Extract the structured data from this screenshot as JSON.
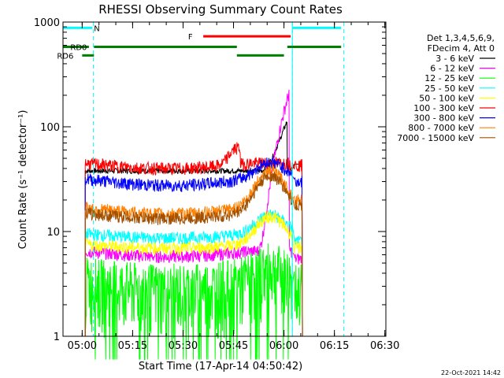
{
  "chart_data": {
    "type": "line",
    "title": "RHESSI Observing Summary Count Rates",
    "xlabel": "Start Time (17-Apr-14 04:50:42)",
    "ylabel": "Count Rate (s⁻¹ detector⁻¹)",
    "x_ticks": [
      "05:00",
      "05:15",
      "05:30",
      "05:45",
      "06:00",
      "06:15",
      "06:30"
    ],
    "y_ticks": [
      "1",
      "10",
      "100",
      "1000"
    ],
    "x_range_minutes": [
      4.3,
      100.3
    ],
    "ylim": [
      1,
      1000
    ],
    "y_scale": "log",
    "legend_header": [
      "Det 1,3,4,5,6,9,",
      "FDecim 4, Att 0"
    ],
    "legend_position": "right",
    "footer_date": "22-Oct-2021 14:42",
    "series": [
      {
        "name": "3 - 6 keV",
        "color": "#000000",
        "kind": "base",
        "base": 38,
        "start": 39.5,
        "rise": 85,
        "peak": 115,
        "end": 44,
        "rej": 44
      },
      {
        "name": "6 - 12 keV",
        "color": "#ff00ff",
        "kind": "flare",
        "base": 6.5,
        "bump": 3,
        "peak": 210,
        "rej": 5.5
      },
      {
        "name": "12 - 25 keV",
        "color": "#00ff00",
        "kind": "noisy",
        "base": 2.8,
        "bump": 1.2,
        "peak": 4,
        "rej": 3
      },
      {
        "name": "25 - 50 keV",
        "color": "#00ffff",
        "kind": "bump",
        "base": 9.5,
        "mid": 8.0,
        "bump": 13,
        "rej": 8
      },
      {
        "name": "50 - 100 keV",
        "color": "#ffff00",
        "kind": "bump",
        "base": 7.5,
        "mid": 6.5,
        "bump": 13,
        "rej": 7
      },
      {
        "name": "100 - 300 keV",
        "color": "#ff0000",
        "kind": "rate",
        "base": 45,
        "mid": 36,
        "bump": 55,
        "rej": 43
      },
      {
        "name": "300 - 800 keV",
        "color": "#0000ff",
        "kind": "bump",
        "base": 32,
        "mid": 24,
        "bump": 38,
        "rej": 30
      },
      {
        "name": "800 - 7000 keV",
        "color": "#ff8000",
        "kind": "bump",
        "base": 17,
        "mid": 13,
        "bump": 34,
        "rej": 20
      },
      {
        "name": "7000 - 15000 keV",
        "color": "#a05000",
        "kind": "bump",
        "base": 15,
        "mid": 12,
        "bump": 31,
        "rej": 18
      }
    ],
    "flags": [
      {
        "label": "N",
        "color": "#00ffff",
        "y": 880,
        "segments": [
          [
            4.3,
            13.0
          ],
          [
            72.5,
            87.0
          ]
        ],
        "label_at": 13.5
      },
      {
        "label": "F",
        "color": "#ff0000",
        "y": 730,
        "segments": [
          [
            46.0,
            72.0
          ]
        ],
        "label_at": 41.5
      },
      {
        "label": "RD0",
        "color": "#008000",
        "y": 580,
        "segments": [
          [
            4.3,
            12.0
          ],
          [
            13.5,
            56.0
          ],
          [
            71.0,
            87.0
          ]
        ],
        "label_at": 6.5
      },
      {
        "label": "RD6",
        "color": "#008000",
        "y": 480,
        "segments": [
          [
            10.0,
            13.5
          ],
          [
            56.0,
            70.0
          ]
        ],
        "label_at": 2.5
      }
    ],
    "saa_lines": [
      13.3,
      72.5,
      87.8
    ],
    "data_gap_end": 4.3,
    "data_start": 10.9,
    "data_end": 75.5
  }
}
